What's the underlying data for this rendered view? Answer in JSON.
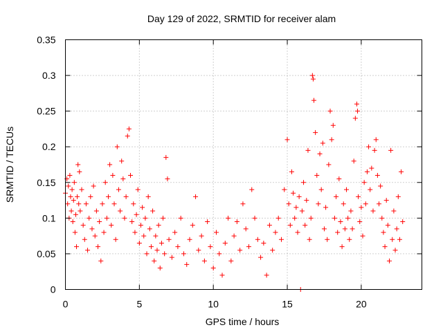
{
  "chart_data": {
    "type": "scatter",
    "title": "Day 129 of 2022, SRMTID for receiver alam",
    "xlabel": "GPS time / hours",
    "ylabel": "SRMTID / TECUs",
    "xlim": [
      0,
      24.1
    ],
    "ylim": [
      0,
      0.35
    ],
    "xticks": [
      0,
      5,
      10,
      15,
      20
    ],
    "yticks": [
      0,
      0.05,
      0.1,
      0.15,
      0.2,
      0.25,
      0.3,
      0.35
    ],
    "xtick_labels": [
      "0",
      "5",
      "10",
      "15",
      "20"
    ],
    "ytick_labels": [
      "0",
      "0.05",
      "0.1",
      "0.15",
      "0.2",
      "0.25",
      "0.3",
      "0.35"
    ],
    "grid": true,
    "marker": "+",
    "series": [
      {
        "name": "SRMTID",
        "color": "#ff0000",
        "points": [
          [
            0.0,
            0.135
          ],
          [
            0.1,
            0.155
          ],
          [
            0.15,
            0.12
          ],
          [
            0.2,
            0.145
          ],
          [
            0.25,
            0.1
          ],
          [
            0.3,
            0.16
          ],
          [
            0.35,
            0.13
          ],
          [
            0.4,
            0.11
          ],
          [
            0.45,
            0.14
          ],
          [
            0.5,
            0.095
          ],
          [
            0.55,
            0.125
          ],
          [
            0.6,
            0.15
          ],
          [
            0.65,
            0.08
          ],
          [
            0.7,
            0.105
          ],
          [
            0.75,
            0.06
          ],
          [
            0.8,
            0.13
          ],
          [
            0.85,
            0.175
          ],
          [
            0.9,
            0.12
          ],
          [
            0.95,
            0.165
          ],
          [
            1.0,
            0.11
          ],
          [
            1.1,
            0.14
          ],
          [
            1.2,
            0.09
          ],
          [
            1.3,
            0.07
          ],
          [
            1.4,
            0.12
          ],
          [
            1.5,
            0.055
          ],
          [
            1.6,
            0.1
          ],
          [
            1.7,
            0.13
          ],
          [
            1.8,
            0.085
          ],
          [
            1.9,
            0.145
          ],
          [
            2.0,
            0.075
          ],
          [
            2.1,
            0.11
          ],
          [
            2.2,
            0.06
          ],
          [
            2.3,
            0.095
          ],
          [
            2.4,
            0.04
          ],
          [
            2.5,
            0.12
          ],
          [
            2.6,
            0.08
          ],
          [
            2.7,
            0.15
          ],
          [
            2.8,
            0.1
          ],
          [
            2.9,
            0.13
          ],
          [
            3.0,
            0.175
          ],
          [
            3.1,
            0.09
          ],
          [
            3.2,
            0.16
          ],
          [
            3.3,
            0.12
          ],
          [
            3.4,
            0.07
          ],
          [
            3.5,
            0.2
          ],
          [
            3.6,
            0.14
          ],
          [
            3.7,
            0.11
          ],
          [
            3.8,
            0.18
          ],
          [
            3.9,
            0.155
          ],
          [
            4.0,
            0.1
          ],
          [
            4.1,
            0.13
          ],
          [
            4.2,
            0.215
          ],
          [
            4.3,
            0.225
          ],
          [
            4.4,
            0.16
          ],
          [
            4.5,
            0.095
          ],
          [
            4.6,
            0.12
          ],
          [
            4.7,
            0.08
          ],
          [
            4.8,
            0.105
          ],
          [
            4.9,
            0.14
          ],
          [
            5.0,
            0.065
          ],
          [
            5.1,
            0.09
          ],
          [
            5.2,
            0.115
          ],
          [
            5.3,
            0.075
          ],
          [
            5.4,
            0.1
          ],
          [
            5.5,
            0.05
          ],
          [
            5.6,
            0.13
          ],
          [
            5.7,
            0.085
          ],
          [
            5.8,
            0.06
          ],
          [
            5.9,
            0.11
          ],
          [
            6.0,
            0.04
          ],
          [
            6.1,
            0.075
          ],
          [
            6.2,
            0.055
          ],
          [
            6.3,
            0.09
          ],
          [
            6.4,
            0.03
          ],
          [
            6.5,
            0.065
          ],
          [
            6.6,
            0.1
          ],
          [
            6.7,
            0.05
          ],
          [
            6.8,
            0.185
          ],
          [
            6.9,
            0.155
          ],
          [
            7.0,
            0.07
          ],
          [
            7.2,
            0.045
          ],
          [
            7.4,
            0.08
          ],
          [
            7.6,
            0.06
          ],
          [
            7.8,
            0.1
          ],
          [
            8.0,
            0.05
          ],
          [
            8.2,
            0.035
          ],
          [
            8.4,
            0.07
          ],
          [
            8.6,
            0.09
          ],
          [
            8.8,
            0.13
          ],
          [
            9.0,
            0.055
          ],
          [
            9.2,
            0.075
          ],
          [
            9.4,
            0.04
          ],
          [
            9.6,
            0.095
          ],
          [
            9.8,
            0.06
          ],
          [
            10.0,
            0.03
          ],
          [
            10.2,
            0.08
          ],
          [
            10.4,
            0.05
          ],
          [
            10.6,
            0.02
          ],
          [
            10.8,
            0.065
          ],
          [
            11.0,
            0.1
          ],
          [
            11.2,
            0.04
          ],
          [
            11.4,
            0.075
          ],
          [
            11.6,
            0.095
          ],
          [
            11.8,
            0.055
          ],
          [
            12.0,
            0.12
          ],
          [
            12.2,
            0.085
          ],
          [
            12.4,
            0.06
          ],
          [
            12.6,
            0.14
          ],
          [
            12.8,
            0.1
          ],
          [
            13.0,
            0.07
          ],
          [
            13.2,
            0.045
          ],
          [
            13.4,
            0.065
          ],
          [
            13.6,
            0.02
          ],
          [
            13.8,
            0.09
          ],
          [
            14.0,
            0.055
          ],
          [
            14.2,
            0.08
          ],
          [
            14.4,
            0.1
          ],
          [
            14.6,
            0.07
          ],
          [
            14.8,
            0.14
          ],
          [
            15.0,
            0.21
          ],
          [
            15.1,
            0.12
          ],
          [
            15.2,
            0.09
          ],
          [
            15.3,
            0.165
          ],
          [
            15.4,
            0.135
          ],
          [
            15.5,
            0.1
          ],
          [
            15.6,
            0.115
          ],
          [
            15.7,
            0.08
          ],
          [
            15.8,
            0.13
          ],
          [
            15.9,
            0.0
          ],
          [
            16.0,
            0.11
          ],
          [
            16.1,
            0.15
          ],
          [
            16.2,
            0.09
          ],
          [
            16.3,
            0.125
          ],
          [
            16.4,
            0.195
          ],
          [
            16.5,
            0.07
          ],
          [
            16.6,
            0.1
          ],
          [
            16.7,
            0.3
          ],
          [
            16.75,
            0.295
          ],
          [
            16.8,
            0.265
          ],
          [
            16.9,
            0.22
          ],
          [
            17.0,
            0.16
          ],
          [
            17.1,
            0.12
          ],
          [
            17.2,
            0.19
          ],
          [
            17.3,
            0.14
          ],
          [
            17.4,
            0.205
          ],
          [
            17.5,
            0.085
          ],
          [
            17.6,
            0.115
          ],
          [
            17.7,
            0.07
          ],
          [
            17.8,
            0.175
          ],
          [
            17.9,
            0.25
          ],
          [
            18.0,
            0.21
          ],
          [
            18.1,
            0.23
          ],
          [
            18.2,
            0.1
          ],
          [
            18.3,
            0.13
          ],
          [
            18.4,
            0.08
          ],
          [
            18.5,
            0.155
          ],
          [
            18.6,
            0.095
          ],
          [
            18.7,
            0.06
          ],
          [
            18.8,
            0.12
          ],
          [
            18.9,
            0.085
          ],
          [
            19.0,
            0.14
          ],
          [
            19.1,
            0.1
          ],
          [
            19.2,
            0.07
          ],
          [
            19.3,
            0.11
          ],
          [
            19.4,
            0.085
          ],
          [
            19.5,
            0.18
          ],
          [
            19.6,
            0.24
          ],
          [
            19.7,
            0.26
          ],
          [
            19.75,
            0.25
          ],
          [
            19.8,
            0.13
          ],
          [
            19.9,
            0.095
          ],
          [
            20.0,
            0.115
          ],
          [
            20.1,
            0.075
          ],
          [
            20.2,
            0.15
          ],
          [
            20.3,
            0.12
          ],
          [
            20.4,
            0.165
          ],
          [
            20.5,
            0.2
          ],
          [
            20.6,
            0.14
          ],
          [
            20.7,
            0.17
          ],
          [
            20.8,
            0.11
          ],
          [
            20.9,
            0.195
          ],
          [
            21.0,
            0.21
          ],
          [
            21.1,
            0.16
          ],
          [
            21.2,
            0.12
          ],
          [
            21.3,
            0.145
          ],
          [
            21.4,
            0.1
          ],
          [
            21.5,
            0.08
          ],
          [
            21.6,
            0.06
          ],
          [
            21.7,
            0.125
          ],
          [
            21.8,
            0.09
          ],
          [
            21.9,
            0.04
          ],
          [
            22.0,
            0.195
          ],
          [
            22.1,
            0.07
          ],
          [
            22.2,
            0.11
          ],
          [
            22.3,
            0.055
          ],
          [
            22.4,
            0.085
          ],
          [
            22.5,
            0.13
          ],
          [
            22.6,
            0.07
          ],
          [
            22.7,
            0.165
          ],
          [
            22.8,
            0.095
          ]
        ]
      }
    ]
  }
}
